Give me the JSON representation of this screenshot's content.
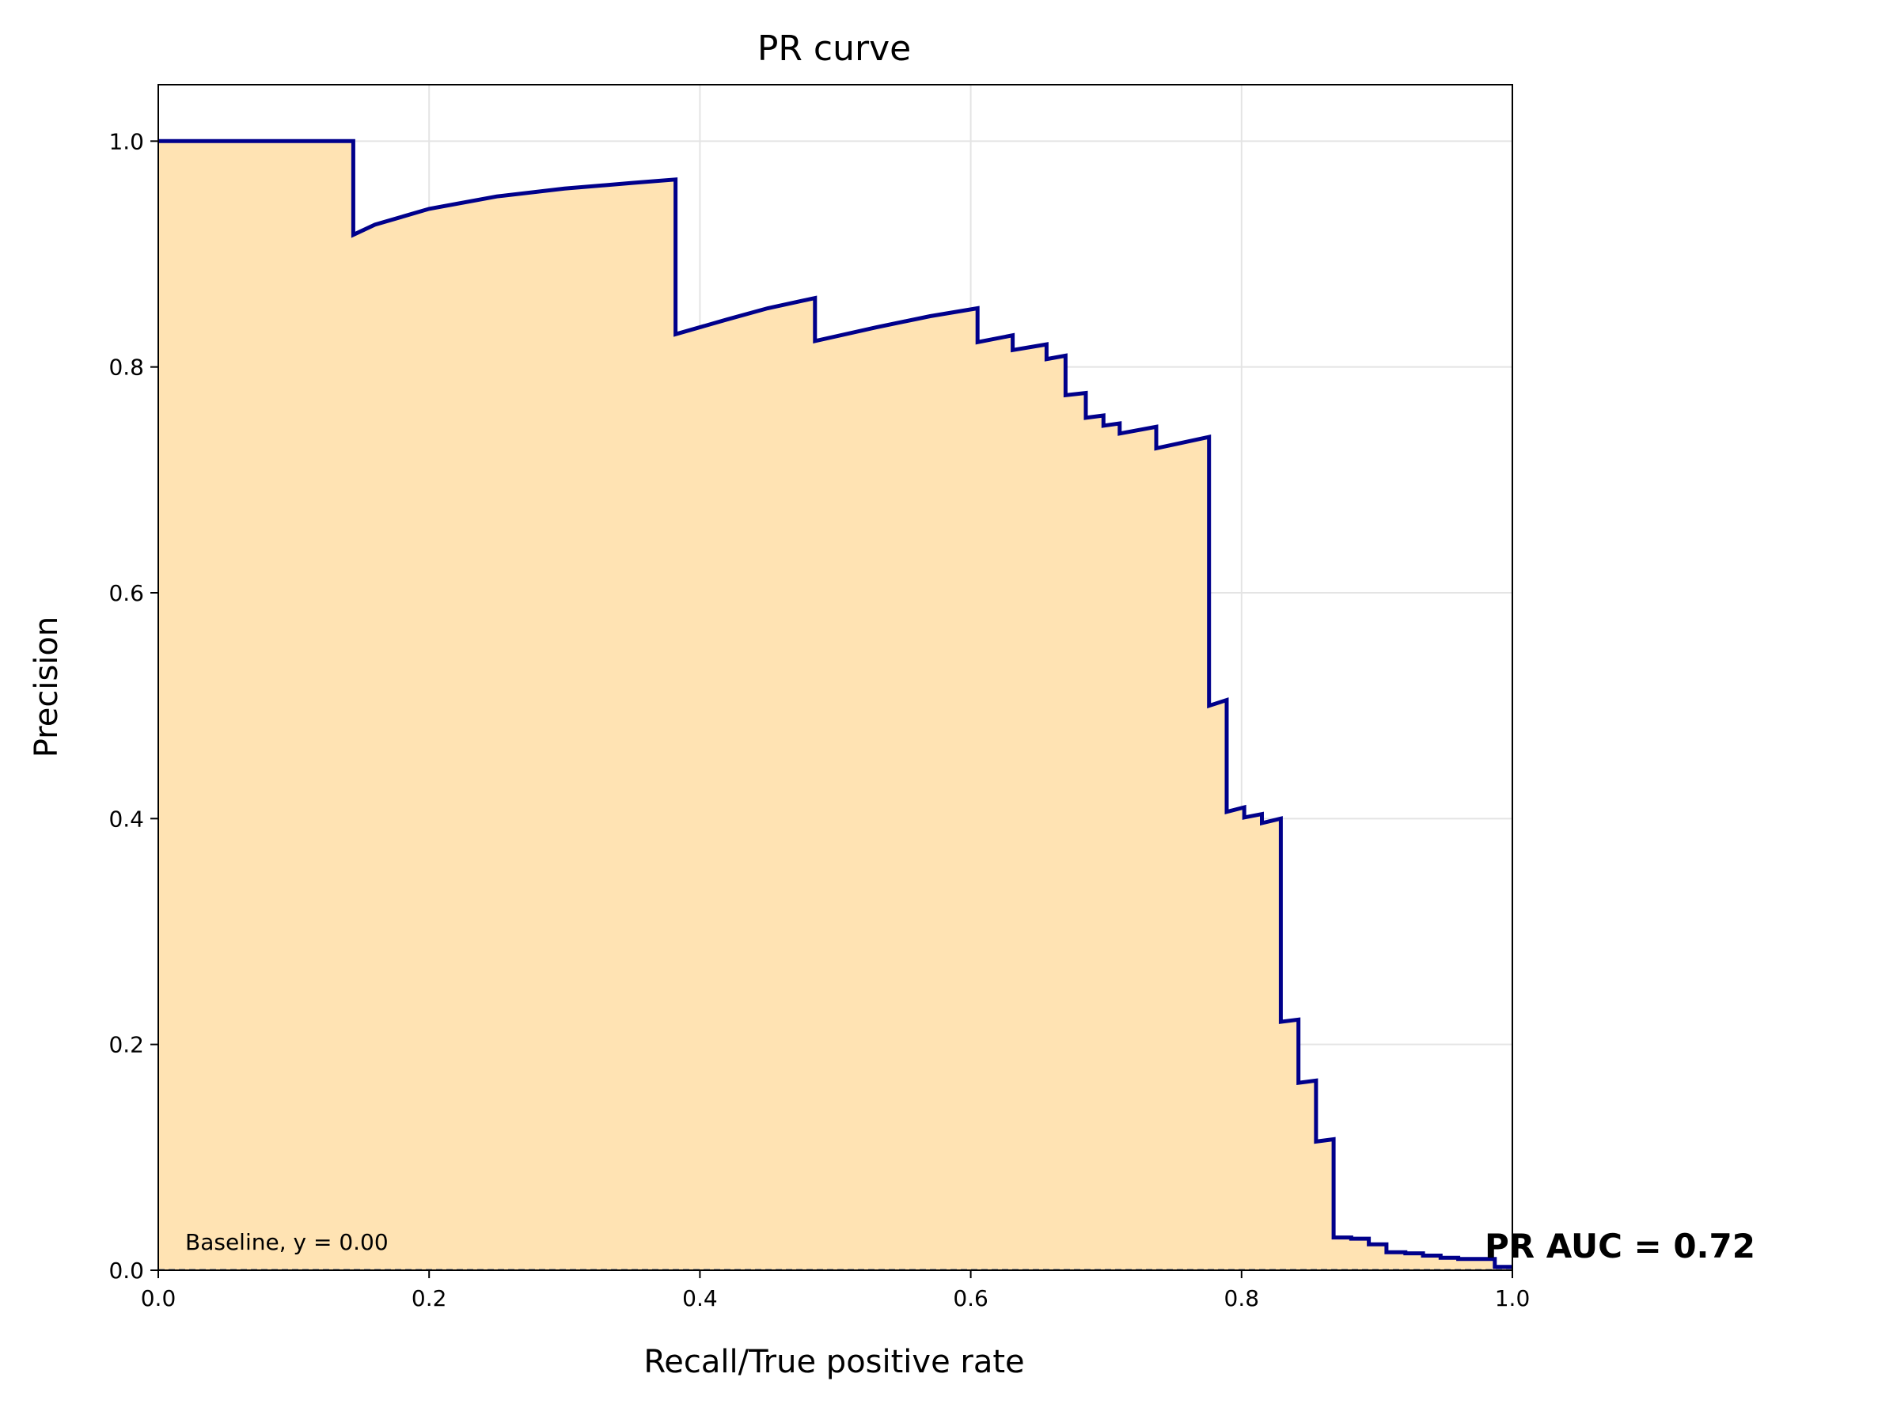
{
  "chart_data": {
    "type": "line",
    "title": "PR curve",
    "xlabel": "Recall/True positive rate",
    "ylabel": "Precision",
    "xlim": [
      0,
      1
    ],
    "ylim": [
      0,
      1.05
    ],
    "x_ticks": [
      "0.0",
      "0.2",
      "0.4",
      "0.6",
      "0.8",
      "1.0"
    ],
    "y_ticks": [
      "0.0",
      "0.2",
      "0.4",
      "0.6",
      "0.8",
      "1.0"
    ],
    "grid": true,
    "fill_under_curve": true,
    "colors": {
      "line": "#00008b",
      "fill": "#ffe3b3",
      "grid": "#e4e4e4",
      "baseline": "#999999"
    },
    "baseline": {
      "y": 0.0,
      "label": "Baseline, y = 0.00"
    },
    "annotation": "PR AUC = 0.72",
    "series": [
      {
        "step": true,
        "points": [
          [
            0.0,
            1.0
          ],
          [
            0.144,
            1.0
          ],
          [
            0.144,
            0.917
          ],
          [
            0.16,
            0.926
          ],
          [
            0.2,
            0.94
          ],
          [
            0.25,
            0.951
          ],
          [
            0.3,
            0.958
          ],
          [
            0.35,
            0.963
          ],
          [
            0.382,
            0.966
          ],
          [
            0.382,
            0.829
          ],
          [
            0.42,
            0.842
          ],
          [
            0.45,
            0.852
          ],
          [
            0.485,
            0.861
          ],
          [
            0.485,
            0.823
          ],
          [
            0.53,
            0.835
          ],
          [
            0.57,
            0.845
          ],
          [
            0.605,
            0.852
          ],
          [
            0.605,
            0.822
          ],
          [
            0.631,
            0.828
          ],
          [
            0.631,
            0.815
          ],
          [
            0.656,
            0.82
          ],
          [
            0.656,
            0.807
          ],
          [
            0.67,
            0.81
          ],
          [
            0.67,
            0.775
          ],
          [
            0.685,
            0.777
          ],
          [
            0.685,
            0.755
          ],
          [
            0.698,
            0.757
          ],
          [
            0.698,
            0.748
          ],
          [
            0.71,
            0.75
          ],
          [
            0.71,
            0.741
          ],
          [
            0.737,
            0.747
          ],
          [
            0.737,
            0.728
          ],
          [
            0.776,
            0.738
          ],
          [
            0.776,
            0.5
          ],
          [
            0.789,
            0.505
          ],
          [
            0.789,
            0.406
          ],
          [
            0.802,
            0.41
          ],
          [
            0.802,
            0.401
          ],
          [
            0.815,
            0.404
          ],
          [
            0.815,
            0.396
          ],
          [
            0.829,
            0.4
          ],
          [
            0.829,
            0.22
          ],
          [
            0.842,
            0.222
          ],
          [
            0.842,
            0.166
          ],
          [
            0.855,
            0.168
          ],
          [
            0.855,
            0.114
          ],
          [
            0.868,
            0.116
          ],
          [
            0.868,
            0.029
          ],
          [
            0.881,
            0.029
          ],
          [
            0.881,
            0.028
          ],
          [
            0.894,
            0.028
          ],
          [
            0.894,
            0.023
          ],
          [
            0.907,
            0.023
          ],
          [
            0.907,
            0.016
          ],
          [
            0.921,
            0.016
          ],
          [
            0.921,
            0.015
          ],
          [
            0.934,
            0.015
          ],
          [
            0.934,
            0.013
          ],
          [
            0.947,
            0.013
          ],
          [
            0.947,
            0.011
          ],
          [
            0.96,
            0.011
          ],
          [
            0.96,
            0.01
          ],
          [
            0.987,
            0.01
          ],
          [
            0.987,
            0.003
          ],
          [
            1.0,
            0.003
          ]
        ]
      }
    ]
  }
}
